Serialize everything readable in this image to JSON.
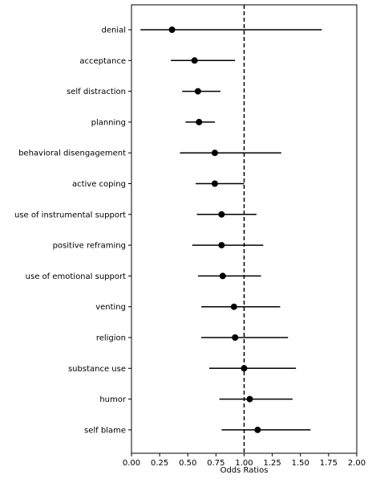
{
  "chart_data": {
    "type": "forest",
    "xlabel": "Odds Ratios",
    "xlim": [
      0.0,
      2.0
    ],
    "xticks": [
      0.0,
      0.25,
      0.5,
      0.75,
      1.0,
      1.25,
      1.5,
      1.75,
      2.0
    ],
    "xtick_labels": [
      "0.00",
      "0.25",
      "0.50",
      "0.75",
      "1.00",
      "1.25",
      "1.50",
      "1.75",
      "2.00"
    ],
    "reference_line": 1.0,
    "reference_style": "dashed",
    "grid": false,
    "marker_color": "#000000",
    "categories": [
      "denial",
      "acceptance",
      "self distraction",
      "planning",
      "behavioral disengagement",
      "active coping",
      "use of instrumental support",
      "positive reframing",
      "use of emotional support",
      "venting",
      "religion",
      "substance use",
      "humor",
      "self blame"
    ],
    "estimates": [
      0.36,
      0.56,
      0.59,
      0.6,
      0.74,
      0.74,
      0.8,
      0.8,
      0.81,
      0.91,
      0.92,
      1.0,
      1.05,
      1.12
    ],
    "ci_lower": [
      0.08,
      0.35,
      0.45,
      0.48,
      0.43,
      0.57,
      0.58,
      0.54,
      0.59,
      0.62,
      0.62,
      0.69,
      0.78,
      0.8
    ],
    "ci_upper": [
      1.69,
      0.92,
      0.79,
      0.74,
      1.33,
      1.0,
      1.11,
      1.17,
      1.15,
      1.32,
      1.39,
      1.46,
      1.43,
      1.59
    ]
  }
}
